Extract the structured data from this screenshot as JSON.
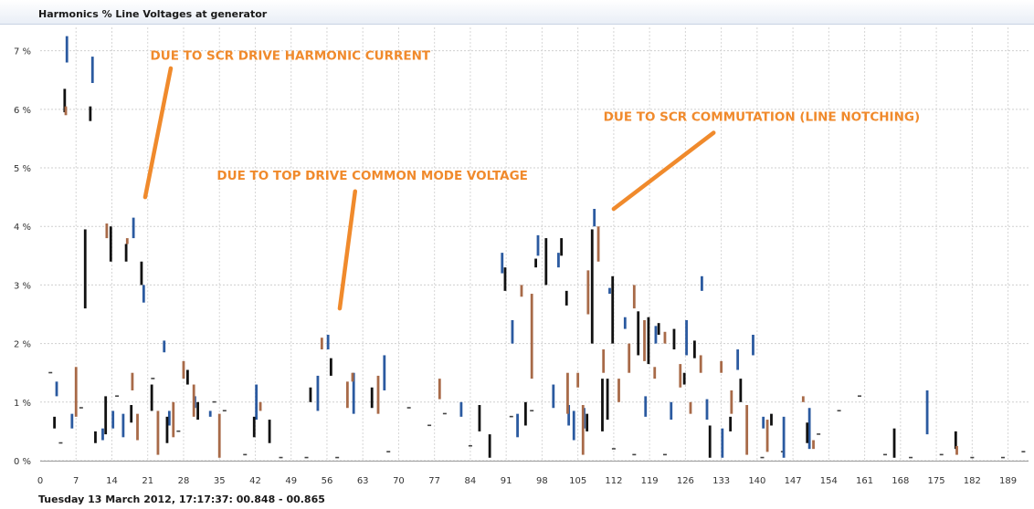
{
  "chart_data": {
    "type": "bar",
    "title": "Harmonics % Line Voltages at generator",
    "footer": "Tuesday 13 March 2012, 17:17:37: 00.848 - 00.865",
    "xlabel": "",
    "ylabel": "",
    "ylim": [
      0,
      7.4
    ],
    "xlim": [
      0,
      193
    ],
    "grid": true,
    "y_ticks": [
      0,
      1,
      2,
      3,
      4,
      5,
      6,
      7
    ],
    "y_tick_labels": [
      "0 %",
      "1 %",
      "2 %",
      "3 %",
      "4 %",
      "5 %",
      "6 %",
      "7 %"
    ],
    "x_ticks": [
      0,
      7,
      14,
      21,
      28,
      35,
      42,
      49,
      56,
      63,
      70,
      77,
      84,
      91,
      98,
      105,
      112,
      119,
      126,
      133,
      140,
      147,
      154,
      161,
      168,
      175,
      182,
      189
    ],
    "colors": {
      "phase_a": "#2b5aa0",
      "phase_b": "#111111",
      "phase_c": "#a86a48",
      "annotation": "#f08a2c"
    },
    "series": [
      {
        "color_key": "phase_a",
        "ranges": [
          [
            3,
            1.1,
            1.35
          ],
          [
            5,
            6.8,
            7.25
          ],
          [
            6,
            0.55,
            0.8
          ],
          [
            10,
            6.45,
            6.9
          ],
          [
            12,
            0.35,
            0.55
          ],
          [
            14,
            0.55,
            0.85
          ],
          [
            16,
            0.4,
            0.8
          ],
          [
            18,
            3.8,
            4.15
          ],
          [
            20,
            2.7,
            3.0
          ],
          [
            24,
            1.85,
            2.05
          ],
          [
            25,
            0.6,
            0.85
          ],
          [
            30,
            0.9,
            1.1
          ],
          [
            33,
            0.75,
            0.85
          ],
          [
            42,
            0.7,
            1.3
          ],
          [
            54,
            0.85,
            1.45
          ],
          [
            56,
            1.9,
            2.15
          ],
          [
            61,
            0.8,
            1.5
          ],
          [
            67,
            1.2,
            1.8
          ],
          [
            82,
            0.75,
            1.0
          ],
          [
            90,
            3.2,
            3.55
          ],
          [
            92,
            2.0,
            2.4
          ],
          [
            93,
            0.4,
            0.8
          ],
          [
            97,
            3.5,
            3.85
          ],
          [
            100,
            0.9,
            1.3
          ],
          [
            101,
            3.3,
            3.55
          ],
          [
            103,
            0.6,
            0.95
          ],
          [
            104,
            0.35,
            0.85
          ],
          [
            106,
            0.55,
            0.9
          ],
          [
            108,
            4.0,
            4.3
          ],
          [
            111,
            2.85,
            2.95
          ],
          [
            114,
            2.25,
            2.45
          ],
          [
            118,
            0.75,
            1.1
          ],
          [
            120,
            2.0,
            2.3
          ],
          [
            123,
            0.7,
            1.0
          ],
          [
            126,
            1.8,
            2.4
          ],
          [
            129,
            2.9,
            3.15
          ],
          [
            130,
            0.7,
            1.05
          ],
          [
            133,
            0.05,
            0.55
          ],
          [
            136,
            1.55,
            1.9
          ],
          [
            139,
            1.8,
            2.15
          ],
          [
            141,
            0.55,
            0.75
          ],
          [
            145,
            0.05,
            0.75
          ],
          [
            150,
            0.2,
            0.9
          ],
          [
            173,
            0.45,
            1.2
          ]
        ]
      },
      {
        "color_key": "phase_b",
        "ranges": [
          [
            3,
            0.55,
            0.75
          ],
          [
            5,
            5.95,
            6.35
          ],
          [
            9,
            2.6,
            3.95
          ],
          [
            10,
            5.8,
            6.05
          ],
          [
            11,
            0.3,
            0.5
          ],
          [
            13,
            0.45,
            1.1
          ],
          [
            14,
            3.4,
            4.0
          ],
          [
            17,
            3.4,
            3.7
          ],
          [
            18,
            0.65,
            0.95
          ],
          [
            20,
            3.0,
            3.4
          ],
          [
            22,
            0.85,
            1.3
          ],
          [
            25,
            0.3,
            0.75
          ],
          [
            29,
            1.3,
            1.55
          ],
          [
            31,
            0.7,
            1.0
          ],
          [
            42,
            0.4,
            0.75
          ],
          [
            45,
            0.3,
            0.7
          ],
          [
            53,
            1.0,
            1.25
          ],
          [
            57,
            1.45,
            1.75
          ],
          [
            65,
            0.9,
            1.25
          ],
          [
            86,
            0.5,
            0.95
          ],
          [
            88,
            0.05,
            0.45
          ],
          [
            91,
            2.9,
            3.3
          ],
          [
            95,
            0.6,
            1.0
          ],
          [
            97,
            3.3,
            3.45
          ],
          [
            99,
            3.0,
            3.8
          ],
          [
            102,
            3.5,
            3.8
          ],
          [
            103,
            2.65,
            2.9
          ],
          [
            107,
            0.5,
            0.8
          ],
          [
            108,
            2.0,
            3.95
          ],
          [
            110,
            0.5,
            1.4
          ],
          [
            111,
            0.7,
            1.4
          ],
          [
            112,
            2.0,
            3.15
          ],
          [
            117,
            1.8,
            2.55
          ],
          [
            119,
            1.65,
            2.45
          ],
          [
            121,
            2.15,
            2.35
          ],
          [
            124,
            1.9,
            2.25
          ],
          [
            126,
            1.3,
            1.5
          ],
          [
            128,
            1.75,
            2.05
          ],
          [
            131,
            0.05,
            0.6
          ],
          [
            135,
            0.5,
            0.75
          ],
          [
            137,
            1.0,
            1.4
          ],
          [
            143,
            0.6,
            0.8
          ],
          [
            150,
            0.3,
            0.65
          ],
          [
            167,
            0.05,
            0.55
          ],
          [
            179,
            0.2,
            0.5
          ]
        ]
      },
      {
        "color_key": "phase_c",
        "ranges": [
          [
            5,
            5.9,
            6.05
          ],
          [
            7,
            0.75,
            1.6
          ],
          [
            13,
            3.8,
            4.05
          ],
          [
            17,
            3.7,
            3.8
          ],
          [
            18,
            1.2,
            1.5
          ],
          [
            19,
            0.35,
            0.8
          ],
          [
            23,
            0.1,
            0.85
          ],
          [
            26,
            0.4,
            1.0
          ],
          [
            28,
            1.4,
            1.7
          ],
          [
            30,
            0.75,
            1.3
          ],
          [
            35,
            0.05,
            0.8
          ],
          [
            43,
            0.85,
            1.0
          ],
          [
            55,
            1.9,
            2.1
          ],
          [
            60,
            0.9,
            1.35
          ],
          [
            61,
            1.35,
            1.5
          ],
          [
            66,
            0.8,
            1.45
          ],
          [
            78,
            1.05,
            1.4
          ],
          [
            94,
            2.8,
            3.0
          ],
          [
            96,
            1.4,
            2.85
          ],
          [
            103,
            0.8,
            1.5
          ],
          [
            105,
            1.25,
            1.5
          ],
          [
            106,
            0.1,
            0.95
          ],
          [
            107,
            2.5,
            3.25
          ],
          [
            109,
            3.4,
            4.0
          ],
          [
            110,
            1.5,
            1.9
          ],
          [
            113,
            1.0,
            1.4
          ],
          [
            115,
            1.5,
            2.0
          ],
          [
            116,
            2.6,
            3.0
          ],
          [
            118,
            1.7,
            2.4
          ],
          [
            120,
            1.4,
            1.6
          ],
          [
            122,
            2.0,
            2.2
          ],
          [
            125,
            1.25,
            1.65
          ],
          [
            127,
            0.8,
            1.0
          ],
          [
            129,
            1.5,
            1.8
          ],
          [
            133,
            1.5,
            1.7
          ],
          [
            135,
            0.8,
            1.2
          ],
          [
            138,
            0.1,
            0.95
          ],
          [
            142,
            0.15,
            0.7
          ],
          [
            149,
            1.0,
            1.1
          ],
          [
            151,
            0.2,
            0.35
          ],
          [
            179,
            0.1,
            0.25
          ]
        ]
      }
    ],
    "residual_levels": [
      [
        2,
        1.5
      ],
      [
        4,
        0.3
      ],
      [
        8,
        0.9
      ],
      [
        15,
        1.1
      ],
      [
        22,
        1.4
      ],
      [
        27,
        0.5
      ],
      [
        34,
        1.0
      ],
      [
        36,
        0.85
      ],
      [
        40,
        0.1
      ],
      [
        47,
        0.05
      ],
      [
        52,
        0.05
      ],
      [
        58,
        0.05
      ],
      [
        68,
        0.15
      ],
      [
        72,
        0.9
      ],
      [
        76,
        0.6
      ],
      [
        79,
        0.8
      ],
      [
        84,
        0.25
      ],
      [
        92,
        0.75
      ],
      [
        96,
        0.85
      ],
      [
        112,
        0.2
      ],
      [
        116,
        0.1
      ],
      [
        122,
        0.1
      ],
      [
        141,
        0.05
      ],
      [
        145,
        0.15
      ],
      [
        152,
        0.45
      ],
      [
        156,
        0.85
      ],
      [
        160,
        1.1
      ],
      [
        165,
        0.1
      ],
      [
        170,
        0.05
      ],
      [
        176,
        0.1
      ],
      [
        182,
        0.05
      ],
      [
        188,
        0.05
      ],
      [
        192,
        0.15
      ]
    ],
    "annotations": [
      {
        "text": "DUE TO SCR DRIVE HARMONIC CURRENT",
        "label_at": [
          21.5,
          6.85
        ],
        "arrow": [
          [
            25.5,
            6.7
          ],
          [
            20.5,
            4.5
          ]
        ]
      },
      {
        "text": "DUE TO TOP DRIVE COMMON MODE VOLTAGE",
        "label_at": [
          34.5,
          4.8
        ],
        "arrow": [
          [
            61.5,
            4.6
          ],
          [
            58.5,
            2.6
          ]
        ]
      },
      {
        "text": "DUE TO SCR COMMUTATION (LINE NOTCHING)",
        "label_at": [
          110.0,
          5.8
        ],
        "arrow": [
          [
            131.5,
            5.6
          ],
          [
            112.0,
            4.3
          ]
        ]
      }
    ]
  }
}
